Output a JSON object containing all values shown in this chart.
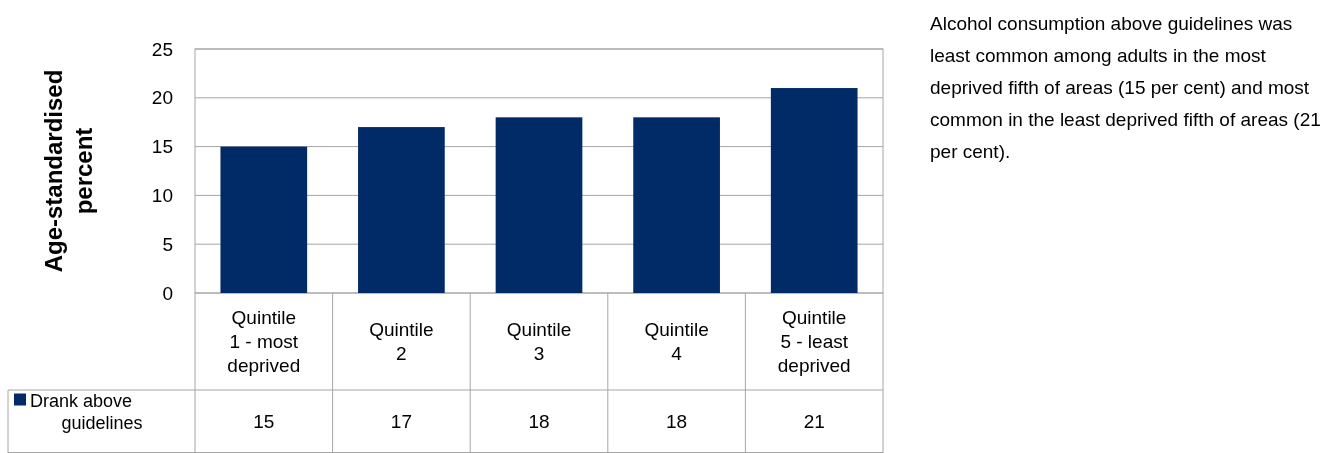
{
  "chart_data": {
    "type": "bar",
    "ylabel": "Age-standardised percent",
    "categories": [
      "Quintile 1 - most deprived",
      "Quintile 2",
      "Quintile 3",
      "Quintile 4",
      "Quintile 5 - least deprived"
    ],
    "series": [
      {
        "name": "Drank above guidelines",
        "color": "#002b66",
        "values": [
          15,
          17,
          18,
          18,
          21
        ]
      }
    ],
    "ylim": [
      0,
      25
    ],
    "yticks": [
      0,
      5,
      10,
      15,
      20,
      25
    ],
    "grid": "y",
    "legend": "bottom left",
    "data_labels": true,
    "annotations": [
      "Alcohol consumption above guidelines was least common among adults in the most deprived fifth of areas (15 per cent) and most common in the least deprived fifth of areas (21 per cent)."
    ]
  }
}
